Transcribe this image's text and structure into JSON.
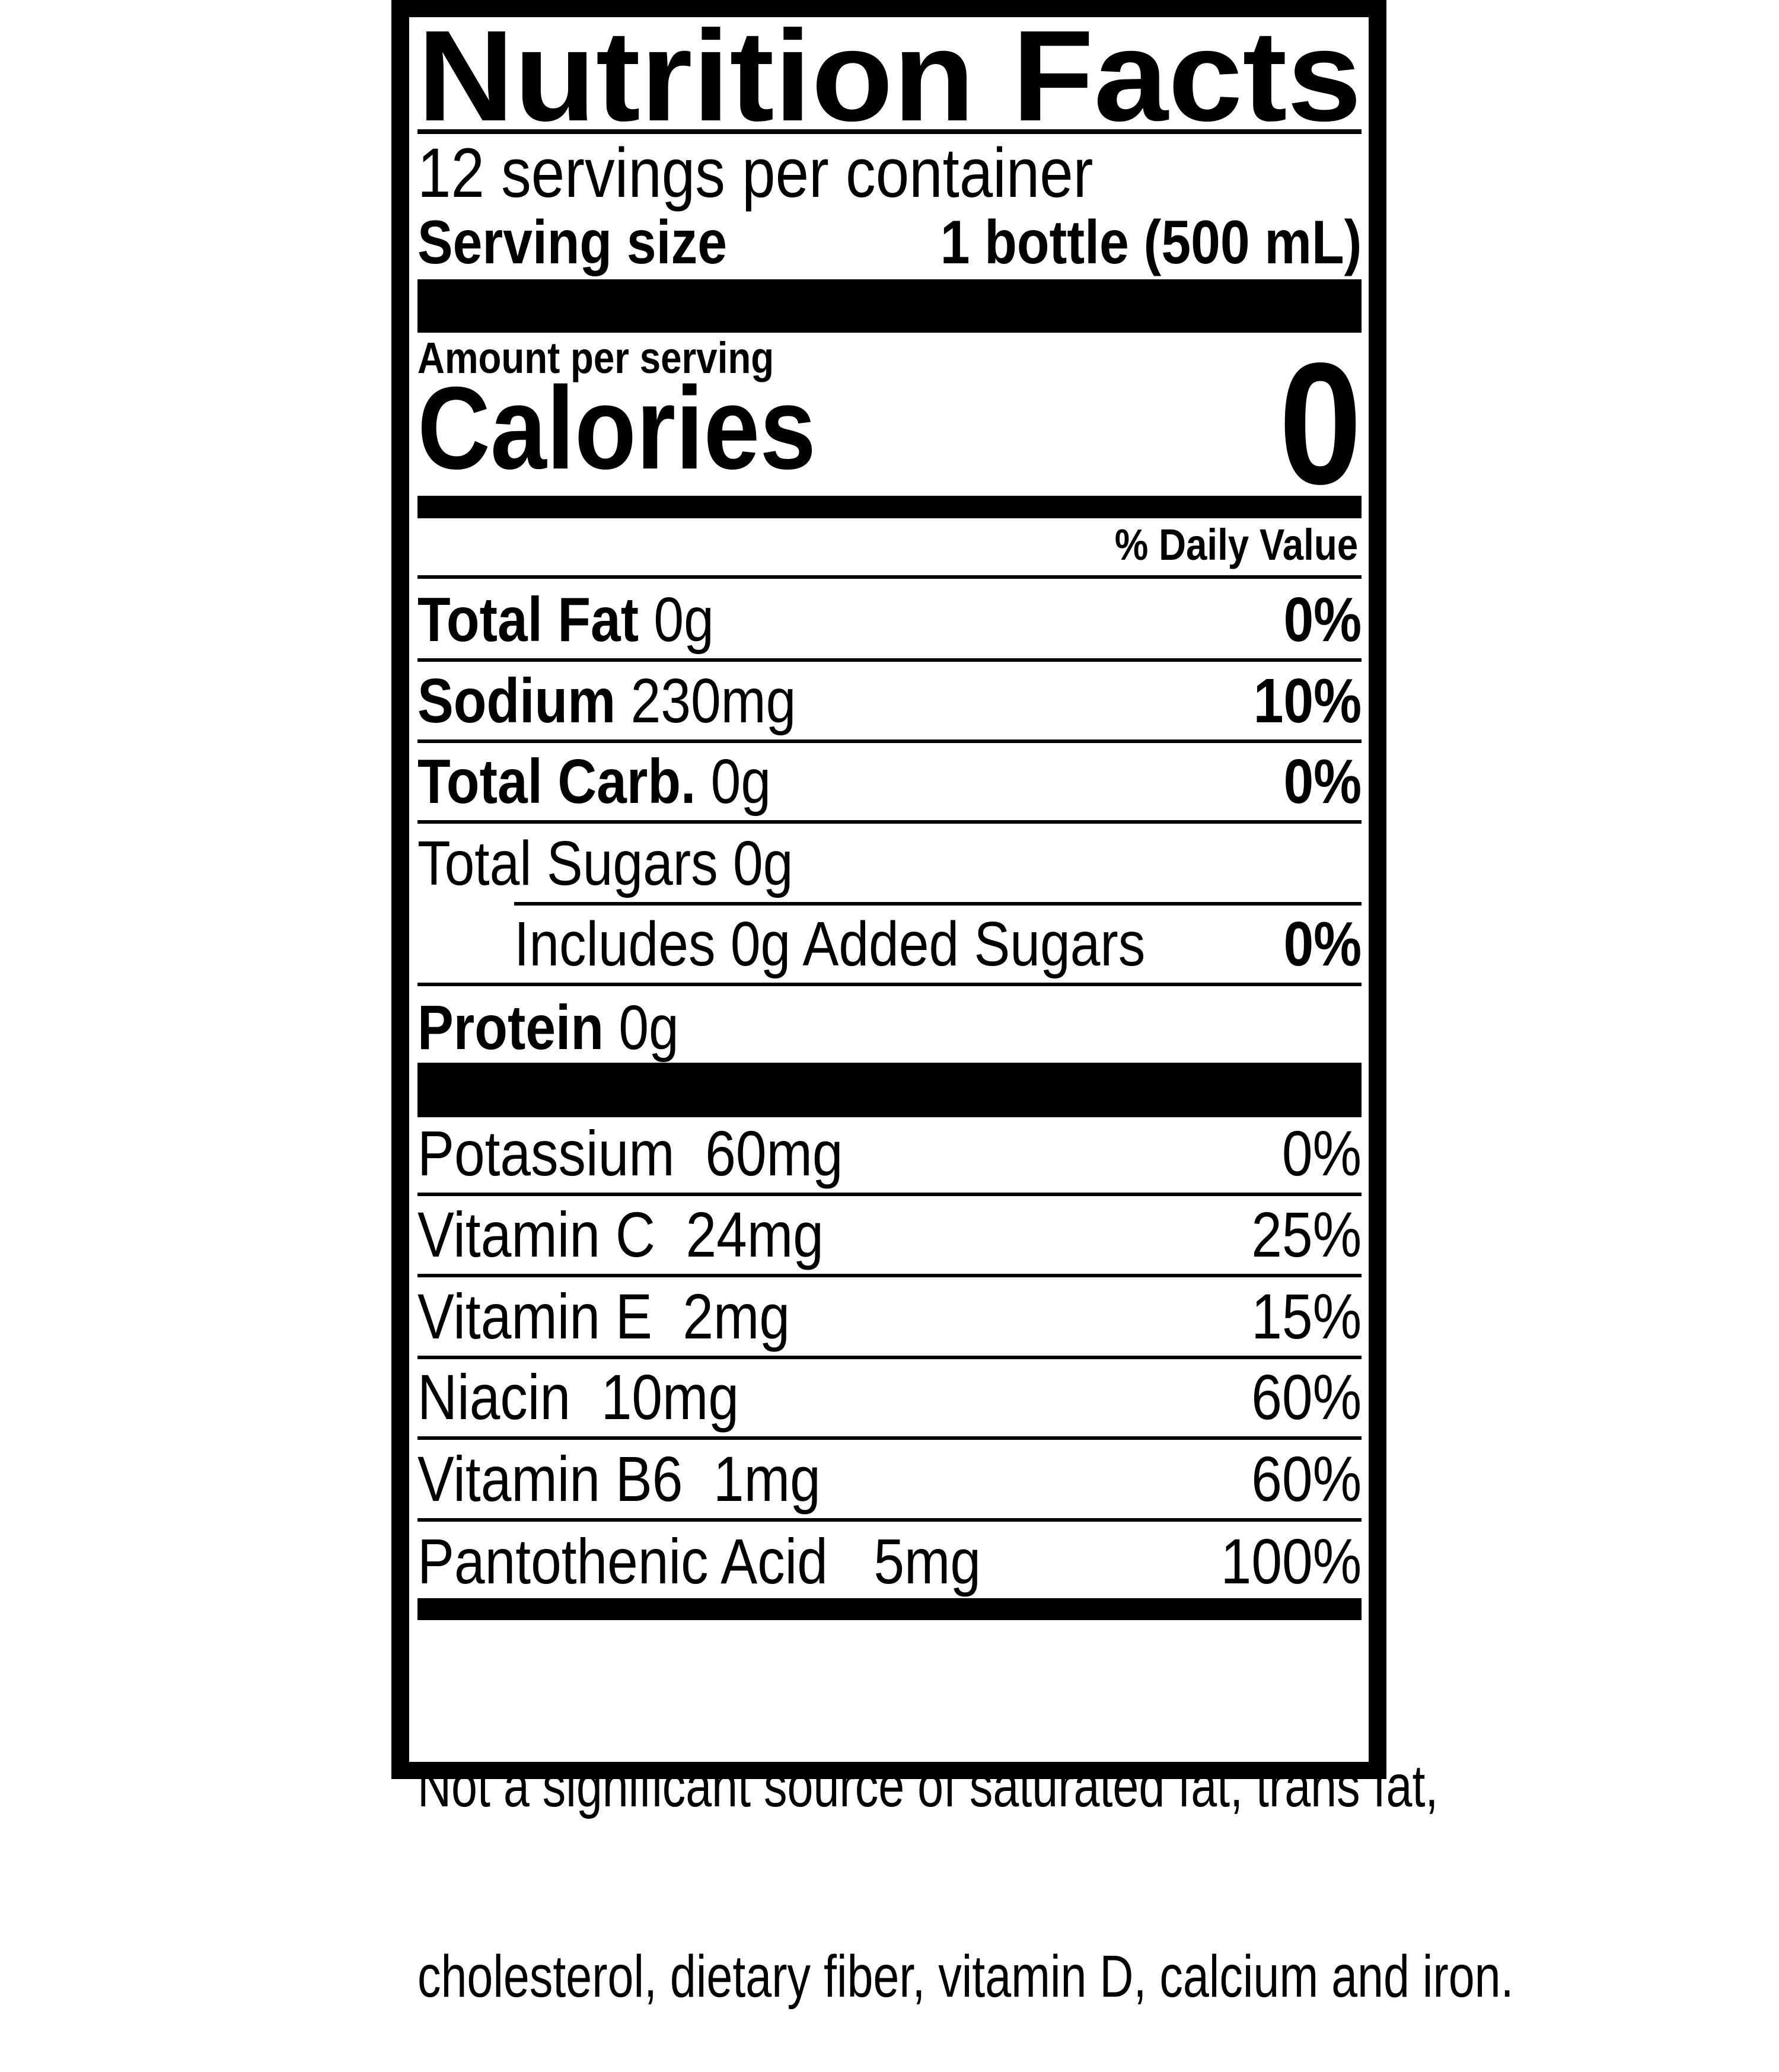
{
  "label": {
    "title": "Nutrition Facts",
    "servings_per_container": "12 servings per container",
    "serving_size_label": "Serving size",
    "serving_size_value": "1 bottle (500 mL)",
    "amount_per_serving": "Amount per serving",
    "calories_label": "Calories",
    "calories_value": "0",
    "daily_value_header": "% Daily Value",
    "nutrients": [
      {
        "name": "Total Fat",
        "amount": " 0g",
        "dv": "0%"
      },
      {
        "name": "Sodium",
        "amount": " 230mg",
        "dv": "10%"
      },
      {
        "name": "Total Carb.",
        "amount": " 0g",
        "dv": "0%"
      },
      {
        "name": "",
        "amount": "Total Sugars 0g",
        "dv": ""
      },
      {
        "name": "",
        "amount": "Includes 0g Added Sugars",
        "dv": "0%"
      },
      {
        "name": "Protein",
        "amount": " 0g",
        "dv": ""
      }
    ],
    "vitamins": [
      {
        "text": "Potassium  60mg",
        "dv": "0%"
      },
      {
        "text": "Vitamin C  24mg",
        "dv": "25%"
      },
      {
        "text": "Vitamin E  2mg",
        "dv": "15%"
      },
      {
        "text": "Niacin  10mg",
        "dv": "60%"
      },
      {
        "text": "Vitamin B6  1mg",
        "dv": "60%"
      },
      {
        "text": "Pantothenic Acid   5mg",
        "dv": "100%"
      }
    ],
    "footnote_line1": "Not a significant source of saturated fat, trans fat,",
    "footnote_line2": "cholesterol, dietary fiber, vitamin D, calcium and iron."
  }
}
